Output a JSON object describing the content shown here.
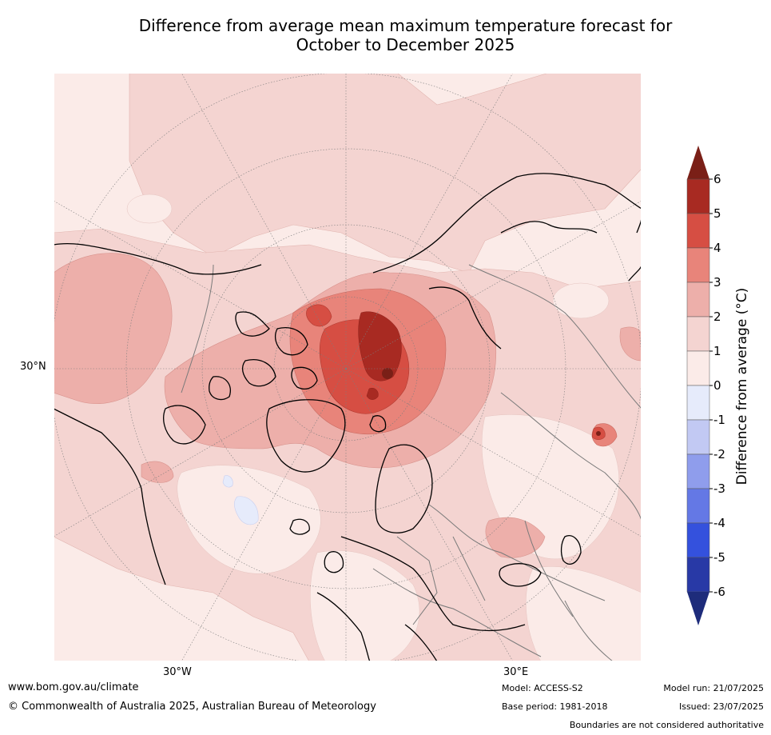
{
  "title": {
    "line1": "Difference from average mean maximum temperature forecast for",
    "line2": "October to December 2025"
  },
  "map": {
    "projection": "north polar stereographic",
    "lat_labels": [
      "30°N"
    ],
    "lon_labels": [
      "30°W",
      "30°E"
    ],
    "features": [
      "coastlines",
      "country boundaries",
      "lat/lon graticule"
    ],
    "hotspot_region": "Arctic Ocean / Barents-Kara seas",
    "max_anomaly_region_range_c": [
      4,
      6
    ],
    "cool_patches": [
      "North Atlantic (weak, -1 to 0)"
    ]
  },
  "colorbar": {
    "label": "Difference from average ($^\\circ$C)",
    "label_display": "Difference from average (°C)",
    "ticks": [
      "6",
      "5",
      "4",
      "3",
      "2",
      "1",
      "0",
      "-1",
      "-2",
      "-3",
      "-4",
      "-5",
      "-6"
    ],
    "colors": {
      "above_6": "#7a1f17",
      "5_to_6": "#a82a22",
      "4_to_5": "#d64e43",
      "3_to_4": "#e8847a",
      "2_to_3": "#edafaa",
      "1_to_2": "#f4d4d1",
      "0_to_1": "#fbebe8",
      "m1_to_0": "#e6ebfb",
      "m2_to_m1": "#c2c9f3",
      "m3_to_m2": "#8f9dec",
      "m4_to_m3": "#6478e5",
      "m5_to_m4": "#3451dd",
      "m6_to_m5": "#2839a6",
      "below_m6": "#1e2c7b"
    }
  },
  "footer": {
    "website": "www.bom.gov.au/climate",
    "copyright": "© Commonwealth of Australia 2025, Australian Bureau of Meteorology",
    "model": "Model: ACCESS-S2",
    "base_period": "Base period: 1981-2018",
    "model_run": "Model run: 21/07/2025",
    "issued": "Issued: 23/07/2025",
    "disclaimer": "Boundaries are not considered authoritative"
  }
}
